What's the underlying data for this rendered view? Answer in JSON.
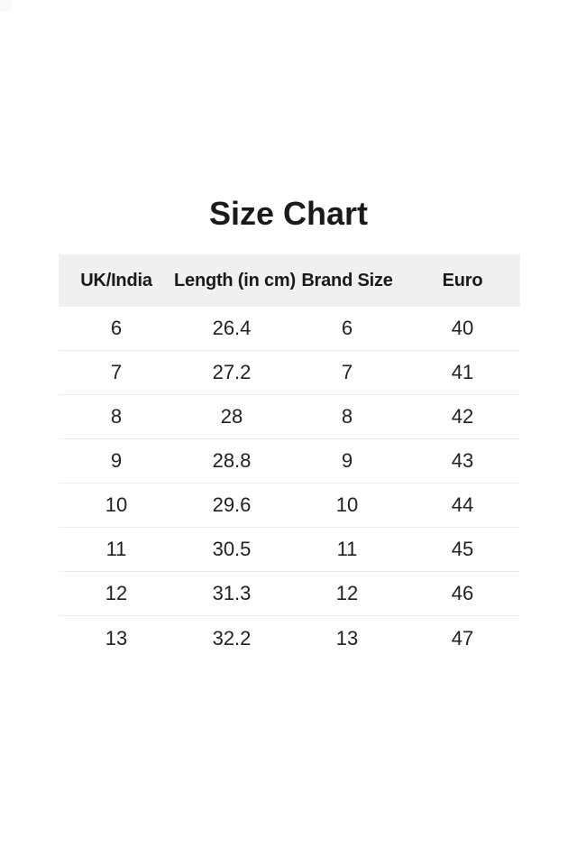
{
  "page": {
    "background": "#ffffff"
  },
  "chart_data": {
    "type": "table",
    "title": "Size Chart",
    "columns": [
      "UK/India",
      "Length (in cm)",
      "Brand Size",
      "Euro"
    ],
    "rows": [
      [
        "6",
        "26.4",
        "6",
        "40"
      ],
      [
        "7",
        "27.2",
        "7",
        "41"
      ],
      [
        "8",
        "28",
        "8",
        "42"
      ],
      [
        "9",
        "28.8",
        "9",
        "43"
      ],
      [
        "10",
        "29.6",
        "10",
        "44"
      ],
      [
        "11",
        "30.5",
        "11",
        "45"
      ],
      [
        "12",
        "31.3",
        "12",
        "46"
      ],
      [
        "13",
        "32.2",
        "13",
        "47"
      ]
    ],
    "layout": {
      "header_background": "#f0f0f1",
      "row_divider_color": "#ededed",
      "title_color": "#1a1a1a",
      "cell_text_color": "#212121",
      "legend": "none",
      "grid": "horizontal-row-dividers"
    }
  }
}
